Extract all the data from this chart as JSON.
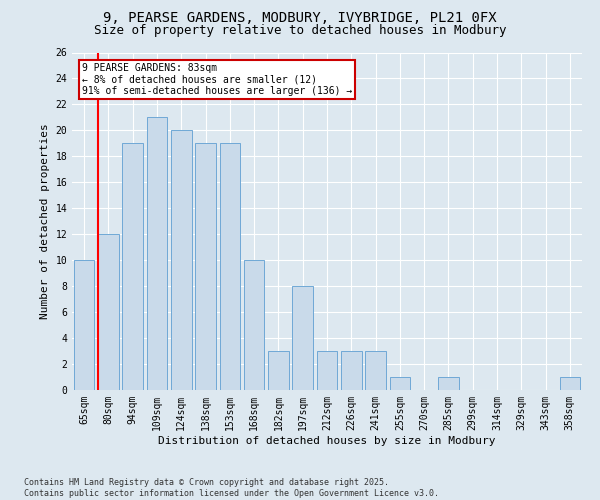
{
  "title1": "9, PEARSE GARDENS, MODBURY, IVYBRIDGE, PL21 0FX",
  "title2": "Size of property relative to detached houses in Modbury",
  "xlabel": "Distribution of detached houses by size in Modbury",
  "ylabel": "Number of detached properties",
  "categories": [
    "65sqm",
    "80sqm",
    "94sqm",
    "109sqm",
    "124sqm",
    "138sqm",
    "153sqm",
    "168sqm",
    "182sqm",
    "197sqm",
    "212sqm",
    "226sqm",
    "241sqm",
    "255sqm",
    "270sqm",
    "285sqm",
    "299sqm",
    "314sqm",
    "329sqm",
    "343sqm",
    "358sqm"
  ],
  "values": [
    10,
    12,
    19,
    21,
    20,
    19,
    19,
    10,
    3,
    8,
    3,
    3,
    3,
    1,
    0,
    1,
    0,
    0,
    0,
    0,
    1
  ],
  "bar_color": "#c9daea",
  "bar_edge_color": "#6fa8d6",
  "vline_color": "#ff0000",
  "annotation_text": "9 PEARSE GARDENS: 83sqm\n← 8% of detached houses are smaller (12)\n91% of semi-detached houses are larger (136) →",
  "annotation_box_color": "#ffffff",
  "annotation_box_edge": "#cc0000",
  "ylim": [
    0,
    26
  ],
  "yticks": [
    0,
    2,
    4,
    6,
    8,
    10,
    12,
    14,
    16,
    18,
    20,
    22,
    24,
    26
  ],
  "bg_color": "#dde8f0",
  "grid_color": "#ffffff",
  "footer": "Contains HM Land Registry data © Crown copyright and database right 2025.\nContains public sector information licensed under the Open Government Licence v3.0.",
  "title_fontsize": 10,
  "subtitle_fontsize": 9,
  "axis_fontsize": 8,
  "tick_fontsize": 7,
  "footer_fontsize": 6
}
